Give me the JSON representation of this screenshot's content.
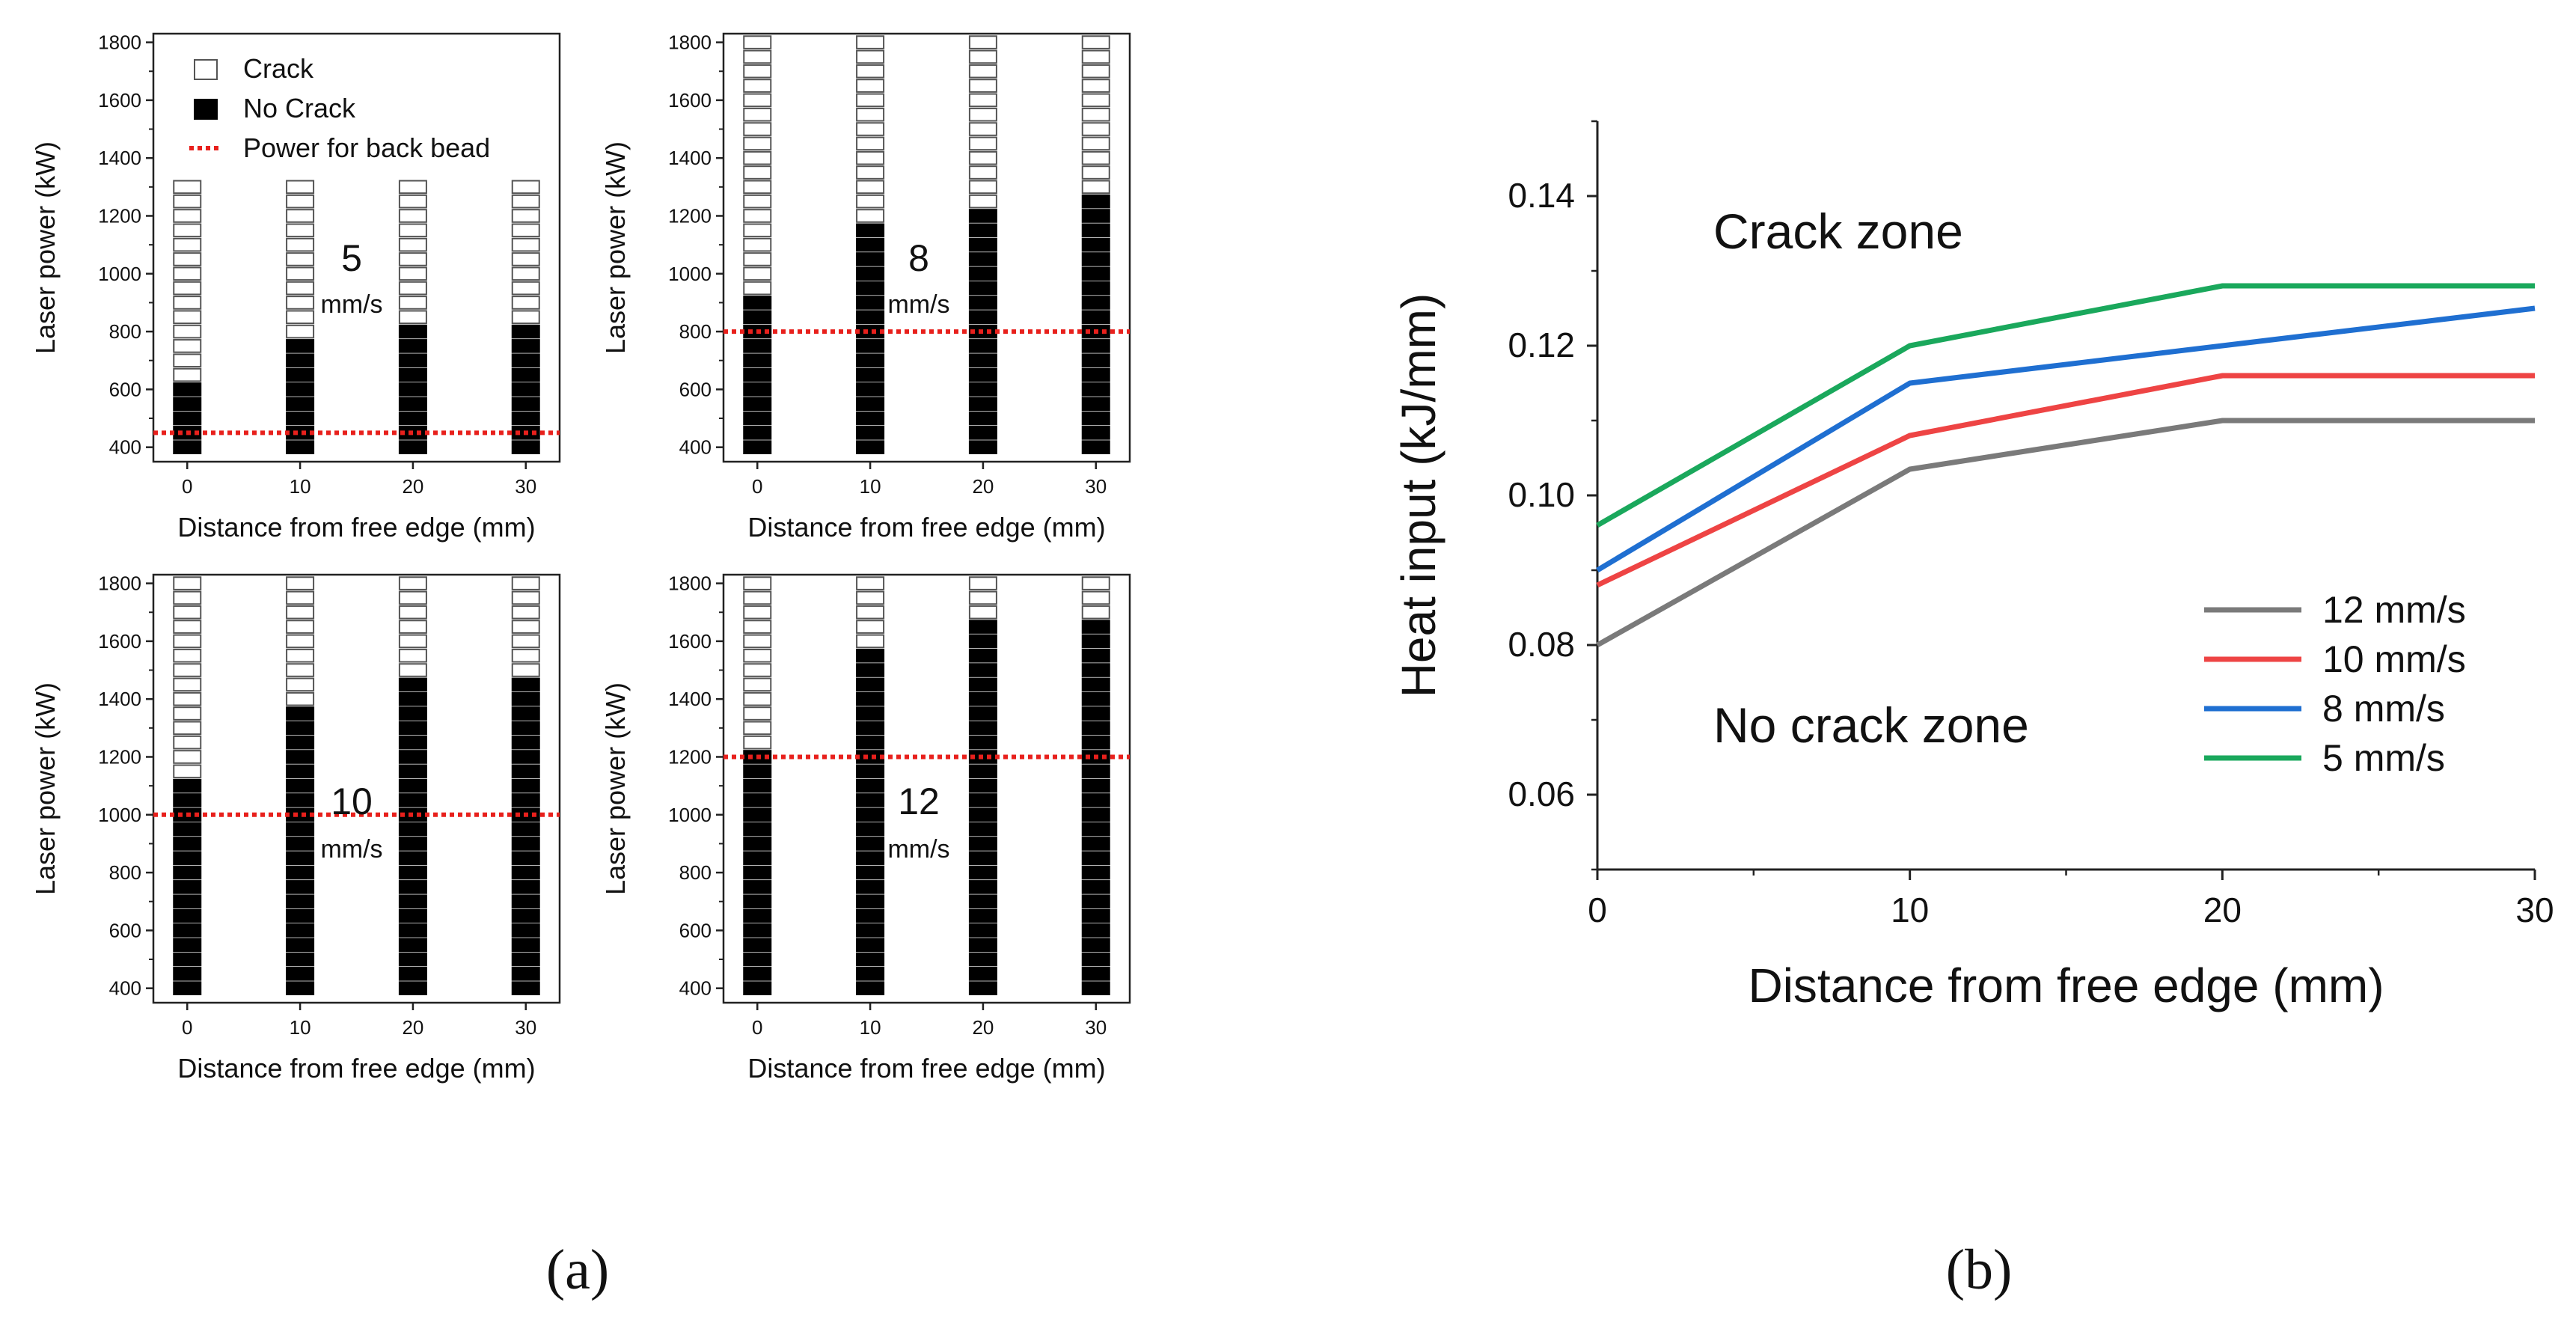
{
  "colors": {
    "axis": "#222222",
    "crack_fill": "#ffffff",
    "nocrack_fill": "#000000",
    "back_bead_line": "#e8201c",
    "series_12": "#7a7a7a",
    "series_10": "#ee4444",
    "series_8": "#1f6fd1",
    "series_5": "#1aa85c"
  },
  "panel_labels": {
    "a": "(a)",
    "b": "(b)"
  },
  "chart_data": [
    {
      "id": "a1",
      "type": "scatter",
      "xlabel": "Distance from free edge (mm)",
      "ylabel": "Laser power (kW)",
      "xticks": [
        "0",
        "10",
        "20",
        "30"
      ],
      "yticks": [
        "400",
        "600",
        "800",
        "1000",
        "1200",
        "1400",
        "1600",
        "1800"
      ],
      "xlim": [
        -3,
        33
      ],
      "ylim": [
        350,
        1830
      ],
      "speed_label": "5",
      "speed_unit": "mm/s",
      "back_bead_power": 450,
      "x": [
        0,
        10,
        20,
        30
      ],
      "no_crack_max": [
        600,
        750,
        800,
        800
      ],
      "crack_max": [
        1300,
        1300,
        1300,
        1300
      ],
      "marker_step": 50,
      "legend": {
        "crack": "Crack",
        "no_crack": "No Crack",
        "back_bead": "Power for back bead"
      }
    },
    {
      "id": "a2",
      "type": "scatter",
      "xlabel": "Distance from free edge (mm)",
      "ylabel": "Laser power (kW)",
      "xticks": [
        "0",
        "10",
        "20",
        "30"
      ],
      "yticks": [
        "400",
        "600",
        "800",
        "1000",
        "1200",
        "1400",
        "1600",
        "1800"
      ],
      "xlim": [
        -3,
        33
      ],
      "ylim": [
        350,
        1830
      ],
      "speed_label": "8",
      "speed_unit": "mm/s",
      "back_bead_power": 800,
      "x": [
        0,
        10,
        20,
        30
      ],
      "no_crack_max": [
        900,
        1150,
        1200,
        1250
      ],
      "crack_max": [
        1800,
        1800,
        1800,
        1800
      ],
      "marker_step": 50
    },
    {
      "id": "a3",
      "type": "scatter",
      "xlabel": "Distance from free edge (mm)",
      "ylabel": "Laser power (kW)",
      "xticks": [
        "0",
        "10",
        "20",
        "30"
      ],
      "yticks": [
        "400",
        "600",
        "800",
        "1000",
        "1200",
        "1400",
        "1600",
        "1800"
      ],
      "xlim": [
        -3,
        33
      ],
      "ylim": [
        350,
        1830
      ],
      "speed_label": "10",
      "speed_unit": "mm/s",
      "back_bead_power": 1000,
      "x": [
        0,
        10,
        20,
        30
      ],
      "no_crack_max": [
        1100,
        1350,
        1450,
        1450
      ],
      "crack_max": [
        1800,
        1800,
        1800,
        1800
      ],
      "marker_step": 50
    },
    {
      "id": "a4",
      "type": "scatter",
      "xlabel": "Distance from free edge (mm)",
      "ylabel": "Laser power (kW)",
      "xticks": [
        "0",
        "10",
        "20",
        "30"
      ],
      "yticks": [
        "400",
        "600",
        "800",
        "1000",
        "1200",
        "1400",
        "1600",
        "1800"
      ],
      "xlim": [
        -3,
        33
      ],
      "ylim": [
        350,
        1830
      ],
      "speed_label": "12",
      "speed_unit": "mm/s",
      "back_bead_power": 1200,
      "x": [
        0,
        10,
        20,
        30
      ],
      "no_crack_max": [
        1200,
        1550,
        1650,
        1650
      ],
      "crack_max": [
        1800,
        1800,
        1800,
        1800
      ],
      "marker_step": 50
    },
    {
      "id": "b",
      "type": "line",
      "xlabel": "Distance from free edge (mm)",
      "ylabel": "Heat input (kJ/mm)",
      "xlim": [
        0,
        30
      ],
      "ylim": [
        0.05,
        0.15
      ],
      "xticks": [
        "0",
        "10",
        "20",
        "30"
      ],
      "yticks": [
        "0.06",
        "0.08",
        "0.10",
        "0.12",
        "0.14"
      ],
      "x": [
        0,
        10,
        20,
        30
      ],
      "series": [
        {
          "name": "12 mm/s",
          "values": [
            0.08,
            0.1035,
            0.11,
            0.11
          ]
        },
        {
          "name": "10 mm/s",
          "values": [
            0.088,
            0.108,
            0.116,
            0.116
          ]
        },
        {
          "name": "8 mm/s",
          "values": [
            0.09,
            0.115,
            0.12,
            0.125
          ]
        },
        {
          "name": "5 mm/s",
          "values": [
            0.096,
            0.12,
            0.128,
            0.128
          ]
        }
      ],
      "annotations": {
        "upper": "Crack zone",
        "lower": "No crack zone"
      },
      "legend_position": "bottom-right"
    }
  ]
}
